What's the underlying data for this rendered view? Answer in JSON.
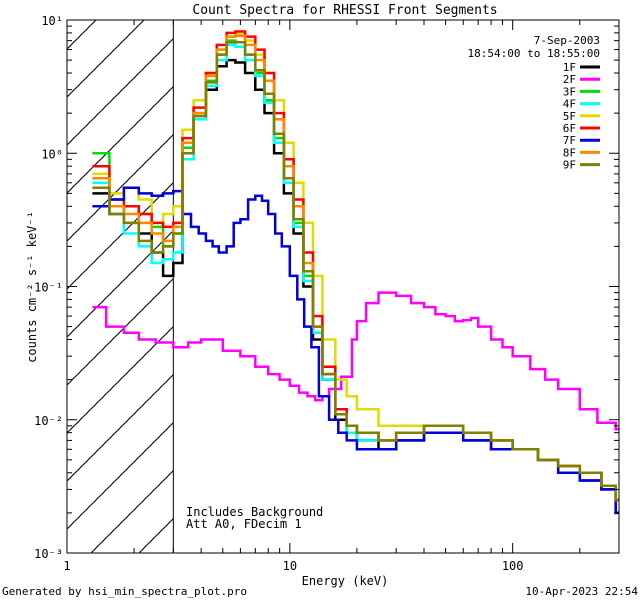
{
  "chart_data": {
    "type": "line",
    "title": "Count Spectra for RHESSI Front Segments",
    "xlabel": "Energy (keV)",
    "ylabel": "counts cm⁻² s⁻¹ keV⁻¹",
    "xscale": "log",
    "yscale": "log",
    "xlim": [
      1,
      300
    ],
    "ylim": [
      0.001,
      10
    ],
    "x_tick_labels": [
      {
        "value": 1,
        "label": "1"
      },
      {
        "value": 10,
        "label": "10"
      },
      {
        "value": 100,
        "label": "100"
      }
    ],
    "y_tick_labels": [
      {
        "value": 10,
        "label": "10¹"
      },
      {
        "value": 1,
        "label": "10⁰"
      },
      {
        "value": 0.1,
        "label": "10⁻¹"
      },
      {
        "value": 0.01,
        "label": "10⁻²"
      },
      {
        "value": 0.001,
        "label": "10⁻³"
      }
    ],
    "legend_position": "top-right",
    "date_text": "7-Sep-2003",
    "time_range_text": "18:54:00 to 18:55:00",
    "excluded_region": {
      "from": 1,
      "to": 3
    },
    "annotations": [
      "Includes Background",
      "Att A0, FDecim 1"
    ],
    "series": [
      {
        "name": "1F",
        "color": "#000000",
        "x": [
          1.3,
          1.55,
          1.8,
          2.1,
          2.4,
          2.7,
          3.0,
          3.3,
          3.7,
          4.2,
          4.7,
          5.2,
          5.7,
          6.3,
          7.0,
          7.7,
          8.5,
          9.4,
          10.4,
          11.5,
          12.7,
          14,
          16,
          18,
          20,
          25,
          30,
          40,
          50,
          60,
          70,
          80,
          100,
          130,
          160,
          200,
          250,
          290
        ],
        "y": [
          0.5,
          0.35,
          0.4,
          0.25,
          0.18,
          0.12,
          0.15,
          1.0,
          1.8,
          3.0,
          4.5,
          5.0,
          4.8,
          4.0,
          3.0,
          2.0,
          1.0,
          0.5,
          0.25,
          0.1,
          0.04,
          0.02,
          0.01,
          0.008,
          0.007,
          0.006,
          0.007,
          0.008,
          0.008,
          0.007,
          0.007,
          0.006,
          0.006,
          0.005,
          0.004,
          0.0035,
          0.003,
          0.002
        ]
      },
      {
        "name": "2F",
        "color": "#ff00ff",
        "x": [
          1.3,
          1.5,
          1.8,
          2.1,
          2.5,
          3.0,
          3.5,
          4.0,
          5.0,
          6.0,
          7.0,
          8.0,
          9.0,
          10,
          11,
          12,
          13,
          14,
          15,
          17,
          19,
          20,
          22,
          25,
          28,
          30,
          35,
          40,
          45,
          50,
          55,
          60,
          65,
          70,
          80,
          90,
          100,
          120,
          140,
          160,
          200,
          240,
          290
        ],
        "y": [
          0.07,
          0.05,
          0.045,
          0.04,
          0.038,
          0.035,
          0.038,
          0.04,
          0.033,
          0.03,
          0.025,
          0.022,
          0.02,
          0.018,
          0.016,
          0.015,
          0.014,
          0.015,
          0.017,
          0.021,
          0.04,
          0.055,
          0.075,
          0.09,
          0.09,
          0.085,
          0.075,
          0.07,
          0.062,
          0.06,
          0.055,
          0.056,
          0.058,
          0.05,
          0.04,
          0.035,
          0.03,
          0.024,
          0.02,
          0.017,
          0.012,
          0.0095,
          0.0085
        ]
      },
      {
        "name": "3F",
        "color": "#00dd00",
        "x": [
          1.3,
          1.55,
          1.8,
          2.1,
          2.4,
          2.7,
          3.0,
          3.3,
          3.7,
          4.2,
          4.7,
          5.2,
          5.7,
          6.3,
          7.0,
          7.7,
          8.5,
          9.4,
          10.4,
          11.5,
          12.7,
          14,
          16,
          18,
          20,
          25,
          30,
          40,
          50,
          60,
          70,
          80,
          100,
          130,
          160,
          200,
          250,
          290
        ],
        "y": [
          1.0,
          0.4,
          0.3,
          0.35,
          0.28,
          0.2,
          0.25,
          1.1,
          2.0,
          3.5,
          5.5,
          7.0,
          6.8,
          5.5,
          4.0,
          2.5,
          1.3,
          0.6,
          0.3,
          0.12,
          0.045,
          0.022,
          0.011,
          0.009,
          0.008,
          0.007,
          0.008,
          0.009,
          0.009,
          0.008,
          0.008,
          0.007,
          0.006,
          0.005,
          0.0045,
          0.004,
          0.0032,
          0.0025
        ]
      },
      {
        "name": "4F",
        "color": "#00ffff",
        "x": [
          1.3,
          1.55,
          1.8,
          2.1,
          2.4,
          2.7,
          3.0,
          3.3,
          3.7,
          4.2,
          4.7,
          5.2,
          5.7,
          6.3,
          7.0,
          7.7,
          8.5,
          9.4,
          10.4,
          11.5,
          12.7,
          14,
          16,
          18,
          20,
          25,
          30,
          40,
          50,
          60,
          70,
          80,
          100,
          130,
          160,
          200,
          250,
          290
        ],
        "y": [
          0.6,
          0.35,
          0.25,
          0.2,
          0.15,
          0.16,
          0.18,
          0.9,
          1.8,
          3.2,
          5.0,
          6.5,
          6.3,
          5.0,
          3.8,
          2.4,
          1.2,
          0.6,
          0.28,
          0.11,
          0.045,
          0.02,
          0.011,
          0.008,
          0.007,
          0.007,
          0.008,
          0.009,
          0.009,
          0.008,
          0.008,
          0.007,
          0.006,
          0.005,
          0.0045,
          0.004,
          0.0032,
          0.0025
        ]
      },
      {
        "name": "5F",
        "color": "#dddd00",
        "x": [
          1.3,
          1.55,
          1.8,
          2.1,
          2.4,
          2.7,
          3.0,
          3.3,
          3.7,
          4.2,
          4.7,
          5.2,
          5.7,
          6.3,
          7.0,
          7.7,
          8.5,
          9.4,
          10.4,
          11.5,
          12.7,
          14,
          16,
          18,
          20,
          25,
          30,
          40,
          50,
          60,
          70,
          80,
          100,
          130,
          160,
          200,
          250,
          290
        ],
        "y": [
          0.7,
          0.5,
          0.55,
          0.45,
          0.3,
          0.35,
          0.4,
          1.5,
          2.5,
          4.0,
          6.0,
          7.5,
          7.8,
          7.0,
          5.5,
          4.0,
          2.5,
          1.2,
          0.6,
          0.3,
          0.12,
          0.04,
          0.02,
          0.015,
          0.012,
          0.009,
          0.009,
          0.009,
          0.009,
          0.008,
          0.008,
          0.007,
          0.006,
          0.005,
          0.0045,
          0.004,
          0.0032,
          0.0025
        ]
      },
      {
        "name": "6F",
        "color": "#ff0000",
        "x": [
          1.3,
          1.55,
          1.8,
          2.1,
          2.4,
          2.7,
          3.0,
          3.3,
          3.7,
          4.2,
          4.7,
          5.2,
          5.7,
          6.3,
          7.0,
          7.7,
          8.5,
          9.4,
          10.4,
          11.5,
          12.7,
          14,
          16,
          18,
          20,
          25,
          30,
          40,
          50,
          60,
          70,
          80,
          100,
          130,
          160,
          200,
          250,
          290
        ],
        "y": [
          0.8,
          0.45,
          0.4,
          0.35,
          0.3,
          0.28,
          0.3,
          1.3,
          2.2,
          4.0,
          6.5,
          8.0,
          8.2,
          7.5,
          6.0,
          4.0,
          2.0,
          0.9,
          0.45,
          0.18,
          0.06,
          0.025,
          0.012,
          0.009,
          0.008,
          0.007,
          0.008,
          0.009,
          0.009,
          0.008,
          0.008,
          0.007,
          0.006,
          0.005,
          0.0045,
          0.004,
          0.0032,
          0.0025
        ]
      },
      {
        "name": "7F",
        "color": "#0000dd",
        "x": [
          1.3,
          1.55,
          1.8,
          2.1,
          2.4,
          2.7,
          3.0,
          3.3,
          3.6,
          3.9,
          4.2,
          4.5,
          4.8,
          5.2,
          5.6,
          6.0,
          6.5,
          7.0,
          7.5,
          8.0,
          8.6,
          9.2,
          10,
          10.8,
          11.6,
          12.5,
          13.5,
          15,
          16.5,
          18,
          20,
          25,
          30,
          40,
          50,
          60,
          70,
          80,
          100,
          130,
          160,
          200,
          250,
          290
        ],
        "y": [
          0.4,
          0.45,
          0.55,
          0.5,
          0.48,
          0.5,
          0.52,
          0.35,
          0.28,
          0.25,
          0.22,
          0.2,
          0.18,
          0.2,
          0.3,
          0.32,
          0.45,
          0.48,
          0.44,
          0.35,
          0.25,
          0.2,
          0.12,
          0.08,
          0.05,
          0.035,
          0.015,
          0.01,
          0.008,
          0.007,
          0.006,
          0.006,
          0.007,
          0.008,
          0.008,
          0.007,
          0.007,
          0.006,
          0.006,
          0.005,
          0.004,
          0.0035,
          0.003,
          0.002
        ]
      },
      {
        "name": "8F",
        "color": "#ff8800",
        "x": [
          1.3,
          1.55,
          1.8,
          2.1,
          2.4,
          2.7,
          3.0,
          3.3,
          3.7,
          4.2,
          4.7,
          5.2,
          5.7,
          6.3,
          7.0,
          7.7,
          8.5,
          9.4,
          10.4,
          11.5,
          12.7,
          14,
          16,
          18,
          20,
          25,
          30,
          40,
          50,
          60,
          70,
          80,
          100,
          130,
          160,
          200,
          250,
          290
        ],
        "y": [
          0.65,
          0.4,
          0.35,
          0.3,
          0.25,
          0.22,
          0.28,
          1.2,
          2.0,
          3.8,
          6.0,
          7.5,
          7.6,
          6.5,
          5.0,
          3.5,
          1.8,
          0.8,
          0.4,
          0.15,
          0.05,
          0.022,
          0.011,
          0.009,
          0.008,
          0.007,
          0.008,
          0.009,
          0.009,
          0.008,
          0.008,
          0.007,
          0.006,
          0.005,
          0.0045,
          0.004,
          0.0032,
          0.0025
        ]
      },
      {
        "name": "9F",
        "color": "#808000",
        "x": [
          1.3,
          1.55,
          1.8,
          2.1,
          2.4,
          2.7,
          3.0,
          3.3,
          3.7,
          4.2,
          4.7,
          5.2,
          5.7,
          6.3,
          7.0,
          7.7,
          8.5,
          9.4,
          10.4,
          11.5,
          12.7,
          14,
          16,
          18,
          20,
          25,
          30,
          40,
          50,
          60,
          70,
          80,
          100,
          130,
          160,
          200,
          250,
          290
        ],
        "y": [
          0.55,
          0.35,
          0.3,
          0.22,
          0.18,
          0.2,
          0.25,
          1.0,
          1.9,
          3.4,
          5.5,
          6.8,
          6.8,
          5.5,
          4.2,
          2.8,
          1.4,
          0.65,
          0.32,
          0.13,
          0.05,
          0.022,
          0.011,
          0.009,
          0.008,
          0.007,
          0.008,
          0.009,
          0.009,
          0.008,
          0.008,
          0.007,
          0.006,
          0.005,
          0.0045,
          0.004,
          0.0032,
          0.0025
        ]
      }
    ]
  },
  "footer": {
    "left": "Generated by hsi_min_spectra_plot.pro",
    "right": "10-Apr-2023 22:54"
  }
}
